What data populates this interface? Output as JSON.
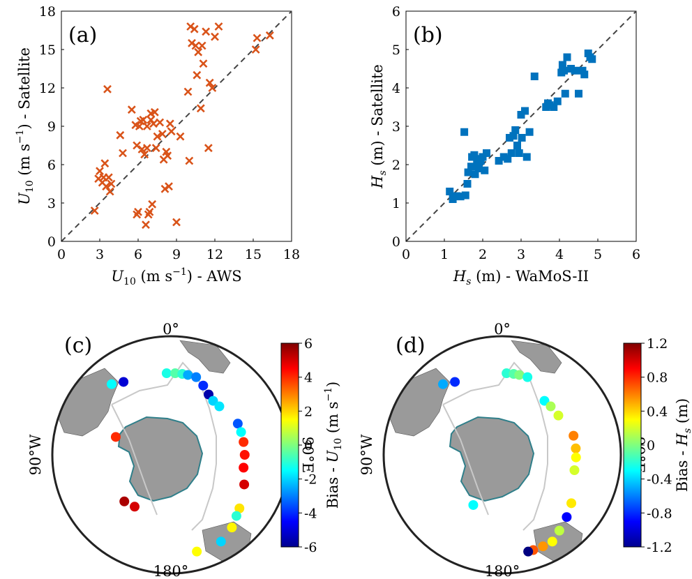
{
  "chart_data": [
    {
      "type": "scatter",
      "panel_label": "(a)",
      "xlabel": {
        "sym": "U",
        "sub": "10",
        "unit_open": " (m s",
        "unit_sup": "−1",
        "unit_close": ") - AWS"
      },
      "ylabel": {
        "sym": "U",
        "sub": "10",
        "unit_open": " (m s",
        "unit_sup": "−1",
        "unit_close": ") - Satellite"
      },
      "xlim": [
        0,
        18
      ],
      "ylim": [
        0,
        18
      ],
      "xticks": [
        "0",
        "3",
        "6",
        "9",
        "12",
        "15",
        "18"
      ],
      "yticks": [
        "0",
        "3",
        "6",
        "9",
        "12",
        "15",
        "18"
      ],
      "marker": "x",
      "color": "#d95319",
      "one_to_one": true,
      "x": [
        2.6,
        2.9,
        3.0,
        3.2,
        3.3,
        3.4,
        3.5,
        3.6,
        3.8,
        3.9,
        4.6,
        4.8,
        5.5,
        5.8,
        5.9,
        6.1,
        6.2,
        6.3,
        6.4,
        6.5,
        6.6,
        6.7,
        6.8,
        6.9,
        7.0,
        7.1,
        7.2,
        7.3,
        7.4,
        7.5,
        7.7,
        7.9,
        8.0,
        8.1,
        8.2,
        8.3,
        8.4,
        8.5,
        8.6,
        9.0,
        9.3,
        9.9,
        10.0,
        10.1,
        10.2,
        10.4,
        10.5,
        10.6,
        10.7,
        10.9,
        11.0,
        11.1,
        11.3,
        11.5,
        11.6,
        11.8,
        12.0,
        12.3,
        15.2,
        15.3,
        16.3,
        5.9,
        6.7,
        7.0,
        3.7,
        6.0
      ],
      "y": [
        2.4,
        4.9,
        5.5,
        4.6,
        5.0,
        6.1,
        4.3,
        11.9,
        3.9,
        4.5,
        8.3,
        6.9,
        10.3,
        9.1,
        2.1,
        9.0,
        9.4,
        7.2,
        9.5,
        6.8,
        1.3,
        7.3,
        2.1,
        2.3,
        10.0,
        2.9,
        9.2,
        10.1,
        7.3,
        8.2,
        9.3,
        8.4,
        6.4,
        4.1,
        7.0,
        6.7,
        4.3,
        9.2,
        8.6,
        1.5,
        8.2,
        11.7,
        6.3,
        16.8,
        15.5,
        16.6,
        15.3,
        13.0,
        14.8,
        10.4,
        15.3,
        13.9,
        16.4,
        7.3,
        12.4,
        12.0,
        16.0,
        16.8,
        15.0,
        15.9,
        16.1,
        7.5,
        9.0,
        9.5,
        5.0,
        2.3
      ]
    },
    {
      "type": "scatter",
      "panel_label": "(b)",
      "xlabel": {
        "sym": "H",
        "sub": "s",
        "unit_open": " (m) - WaMoS-II",
        "unit_sup": "",
        "unit_close": ""
      },
      "ylabel": {
        "sym": "H",
        "sub": "s",
        "unit_open": " (m) - Satellite",
        "unit_sup": "",
        "unit_close": ""
      },
      "xlim": [
        0,
        6
      ],
      "ylim": [
        0,
        6
      ],
      "xticks": [
        "0",
        "1",
        "2",
        "3",
        "4",
        "5",
        "6"
      ],
      "yticks": [
        "0",
        "1",
        "2",
        "3",
        "4",
        "5",
        "6"
      ],
      "marker": "square",
      "color": "#0072bd",
      "one_to_one": true,
      "x": [
        1.14,
        1.22,
        1.32,
        1.42,
        1.52,
        1.55,
        1.6,
        1.62,
        1.7,
        1.72,
        1.78,
        1.8,
        1.85,
        1.88,
        1.9,
        1.95,
        2.0,
        2.05,
        2.1,
        2.42,
        2.55,
        2.65,
        2.7,
        2.75,
        2.8,
        2.85,
        2.9,
        2.95,
        3.0,
        3.02,
        3.1,
        3.15,
        3.22,
        3.35,
        3.65,
        3.7,
        3.75,
        3.85,
        3.95,
        4.05,
        4.08,
        4.12,
        4.15,
        4.2,
        4.3,
        4.4,
        4.5,
        4.6,
        4.65,
        4.75,
        4.8,
        4.85
      ],
      "y": [
        1.3,
        1.1,
        1.18,
        1.17,
        2.85,
        1.2,
        1.5,
        1.8,
        1.95,
        2.2,
        2.25,
        1.75,
        2.05,
        2.15,
        1.9,
        2.1,
        2.2,
        1.85,
        2.3,
        2.1,
        2.2,
        2.15,
        2.7,
        2.3,
        2.75,
        2.9,
        2.5,
        2.3,
        3.3,
        2.7,
        3.4,
        2.2,
        2.85,
        4.3,
        3.5,
        3.6,
        3.55,
        3.5,
        3.65,
        4.4,
        4.6,
        4.45,
        3.85,
        4.8,
        4.5,
        4.45,
        3.85,
        4.45,
        4.35,
        4.9,
        4.8,
        4.75
      ]
    },
    {
      "type": "map",
      "panel_label": "(d)",
      "colorbar_label": {
        "prefix": "Bias - ",
        "sym": "H",
        "sub": "s",
        "suffix": " (m)"
      },
      "colorbar_ticks": [
        "1.2",
        "0.8",
        "0.4",
        "0",
        "-0.4",
        "-0.8",
        "-1.2"
      ],
      "longitude_labels": {
        "top": "0°",
        "bottom": "180°",
        "left": "90°W",
        "right": "90°E"
      }
    }
  ],
  "map_c": {
    "panel_label": "(c)",
    "colorbar_label": {
      "prefix": "Bias - ",
      "sym": "U",
      "sub": "10",
      "unit_open": " (m s",
      "unit_sup": "−1",
      "unit_close": ")"
    },
    "colorbar_ticks": [
      "6",
      "4",
      "2",
      "0",
      "-2",
      "-4",
      "-6"
    ],
    "longitude_labels": {
      "top": "0°",
      "bottom": "180°",
      "left": "90°W",
      "right": "90°E"
    },
    "bias_points": [
      {
        "lon": -40,
        "lat": -55,
        "bias": -1.5
      },
      {
        "lon": -33,
        "lat": -57,
        "bias": -5.0
      },
      {
        "lon": -3,
        "lat": -59,
        "bias": -1.2
      },
      {
        "lon": 3,
        "lat": -59,
        "bias": -0.5
      },
      {
        "lon": 8,
        "lat": -59,
        "bias": -1.0
      },
      {
        "lon": 12,
        "lat": -59,
        "bias": -2.5
      },
      {
        "lon": 18,
        "lat": -59,
        "bias": -3.0
      },
      {
        "lon": 25,
        "lat": -61,
        "bias": -4.0
      },
      {
        "lon": 32,
        "lat": -63,
        "bias": -5.5
      },
      {
        "lon": 38,
        "lat": -64,
        "bias": -2.0
      },
      {
        "lon": 45,
        "lat": -64,
        "bias": -1.8
      },
      {
        "lon": 65,
        "lat": -62,
        "bias": -3.5
      },
      {
        "lon": 72,
        "lat": -62,
        "bias": -1.5
      },
      {
        "lon": 80,
        "lat": -62,
        "bias": 4.0
      },
      {
        "lon": 90,
        "lat": -62,
        "bias": 4.3
      },
      {
        "lon": 100,
        "lat": -62,
        "bias": 4.5
      },
      {
        "lon": 112,
        "lat": -60,
        "bias": 5.0
      },
      {
        "lon": 128,
        "lat": -57,
        "bias": 1.8
      },
      {
        "lon": 133,
        "lat": -56,
        "bias": -1.0
      },
      {
        "lon": 140,
        "lat": -54,
        "bias": 1.6
      },
      {
        "lon": 150,
        "lat": -52,
        "bias": -2.0
      },
      {
        "lon": -135,
        "lat": -65,
        "bias": 5.5
      },
      {
        "lon": -145,
        "lat": -66,
        "bias": 5.0
      },
      {
        "lon": -72,
        "lat": -68,
        "bias": 4.0
      },
      {
        "lon": 165,
        "lat": -52,
        "bias": 1.5
      }
    ]
  },
  "map_d_points": [
    {
      "lon": -40,
      "lat": -55,
      "bias": -0.5
    },
    {
      "lon": -33,
      "lat": -57,
      "bias": -0.8
    },
    {
      "lon": 3,
      "lat": -59,
      "bias": -0.2
    },
    {
      "lon": 8,
      "lat": -59,
      "bias": -0.1
    },
    {
      "lon": 12,
      "lat": -59,
      "bias": 0.0
    },
    {
      "lon": 18,
      "lat": -59,
      "bias": -0.25
    },
    {
      "lon": 38,
      "lat": -64,
      "bias": -0.3
    },
    {
      "lon": 45,
      "lat": -64,
      "bias": 0.1
    },
    {
      "lon": 55,
      "lat": -64,
      "bias": 0.2
    },
    {
      "lon": 75,
      "lat": -62,
      "bias": 0.6
    },
    {
      "lon": 85,
      "lat": -62,
      "bias": 0.45
    },
    {
      "lon": 92,
      "lat": -62,
      "bias": 0.3
    },
    {
      "lon": 102,
      "lat": -62,
      "bias": 0.2
    },
    {
      "lon": 125,
      "lat": -58,
      "bias": 0.35
    },
    {
      "lon": 134,
      "lat": -56,
      "bias": -0.9
    },
    {
      "lon": 143,
      "lat": -54,
      "bias": 0.15
    },
    {
      "lon": 150,
      "lat": -52,
      "bias": 0.3
    },
    {
      "lon": 156,
      "lat": -52,
      "bias": 0.55
    },
    {
      "lon": 162,
      "lat": -52,
      "bias": 0.7
    },
    {
      "lon": 165,
      "lat": -52,
      "bias": -1.2
    },
    {
      "lon": -150,
      "lat": -68,
      "bias": -0.3
    }
  ]
}
